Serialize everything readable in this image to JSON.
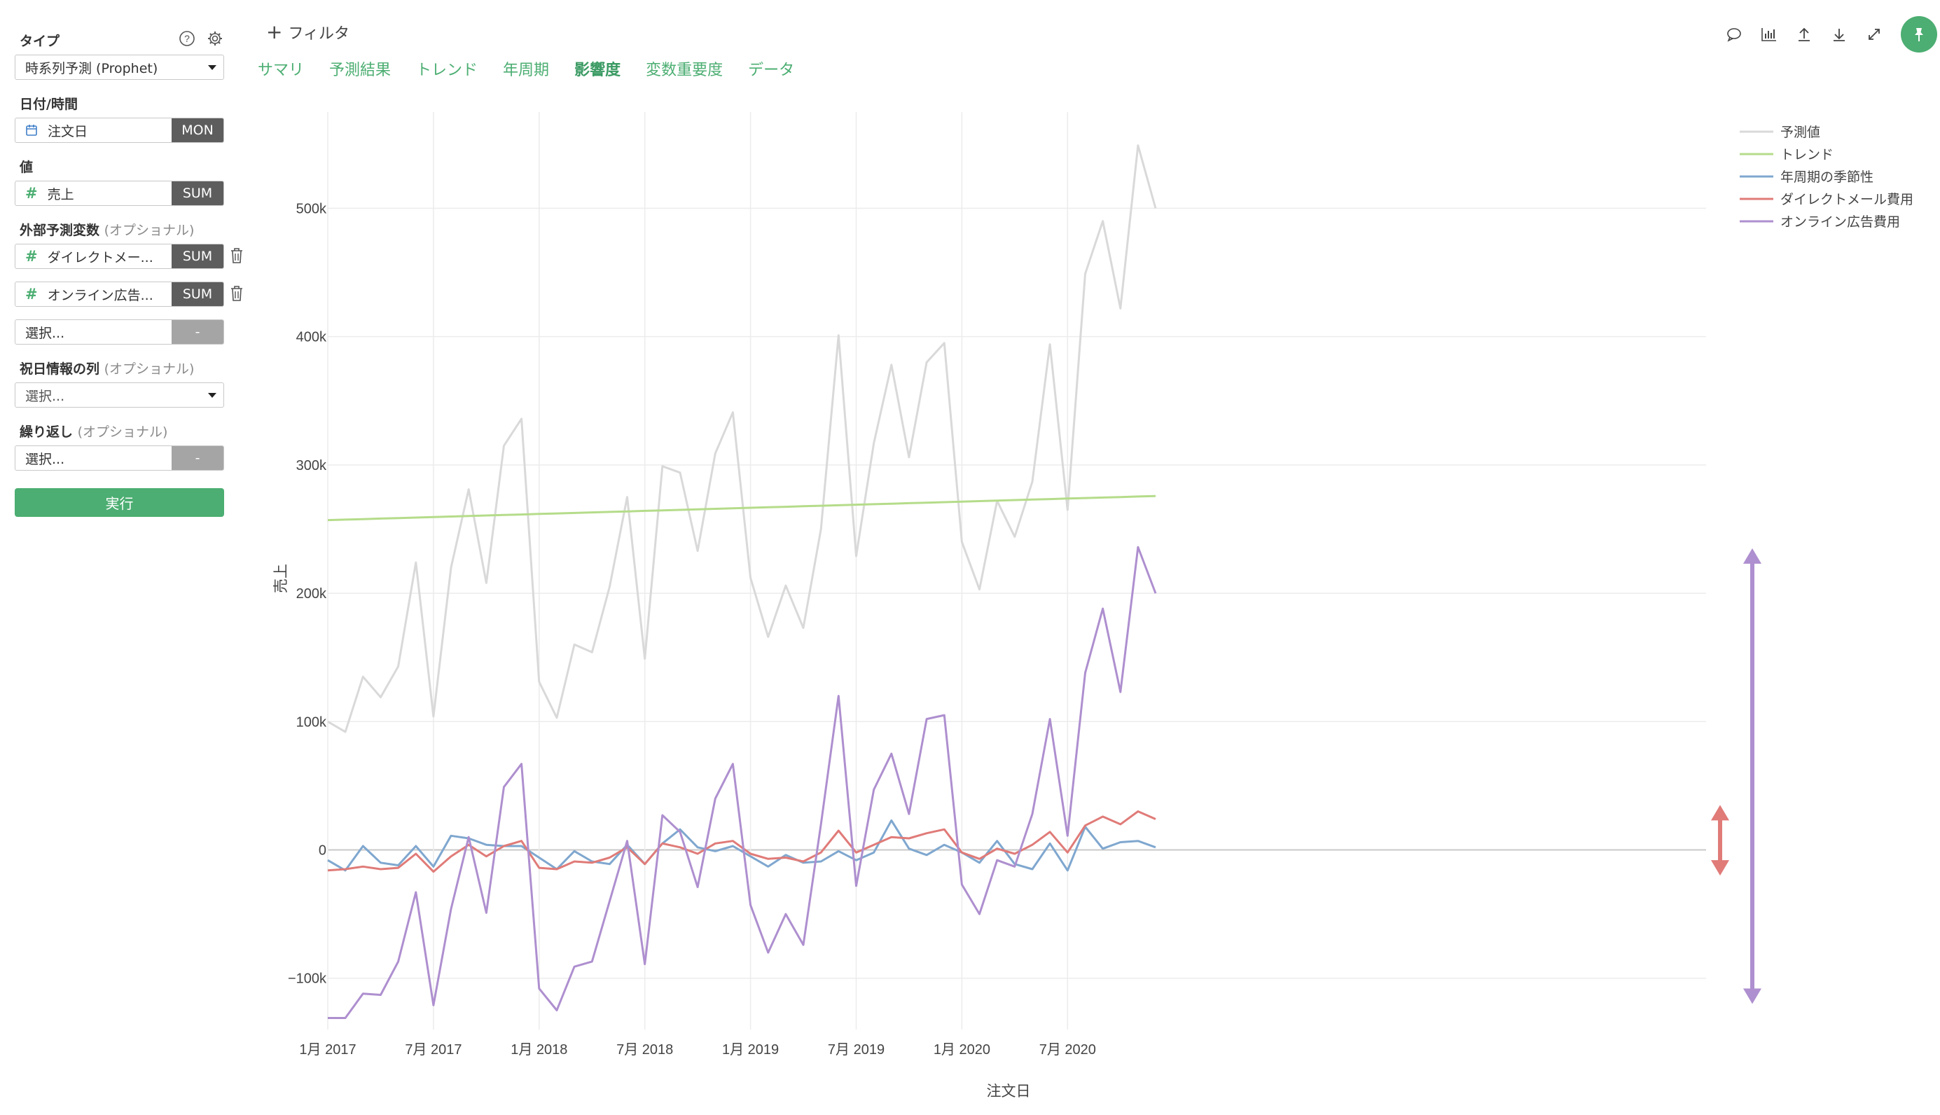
{
  "sidebar": {
    "type_label": "タイプ",
    "type_value": "時系列予測 (Prophet)",
    "date_label": "日付/時間",
    "date_field": "注文日",
    "date_agg": "MON",
    "value_label": "値",
    "value_field": "売上",
    "value_agg": "SUM",
    "ext_label": "外部予測変数",
    "ext_optional": "(オプショナル)",
    "ext_vars": [
      {
        "field": "ダイレクトメー...",
        "agg": "SUM"
      },
      {
        "field": "オンライン広告...",
        "agg": "SUM"
      }
    ],
    "ext_select_placeholder": "選択...",
    "ext_select_agg": "-",
    "holiday_label": "祝日情報の列",
    "holiday_optional": "(オプショナル)",
    "holiday_placeholder": "選択...",
    "repeat_label": "繰り返し",
    "repeat_optional": "(オプショナル)",
    "repeat_placeholder": "選択...",
    "repeat_agg": "-",
    "run_label": "実行"
  },
  "header": {
    "filter_label": "フィルタ",
    "tabs": [
      {
        "label": "サマリ",
        "active": false
      },
      {
        "label": "予測結果",
        "active": false
      },
      {
        "label": "トレンド",
        "active": false
      },
      {
        "label": "年周期",
        "active": false
      },
      {
        "label": "影響度",
        "active": true
      },
      {
        "label": "変数重要度",
        "active": false
      },
      {
        "label": "データ",
        "active": false
      }
    ],
    "toolbar_icons": [
      "comment-icon",
      "chart-icon",
      "upload-icon",
      "download-icon",
      "expand-icon",
      "pin-icon"
    ]
  },
  "colors": {
    "accent": "#4cae72",
    "forecast": "#d9d9d9",
    "trend": "#b5dc8a",
    "seasonality": "#7fa7cf",
    "direct_mail": "#e07b78",
    "online_ads": "#ae8fcf"
  },
  "chart_data": {
    "type": "line",
    "xlabel": "注文日",
    "ylabel": "売上",
    "ylim": [
      -140000,
      575000
    ],
    "yticks": [
      -100000,
      0,
      100000,
      200000,
      300000,
      400000,
      500000
    ],
    "ytick_labels": [
      "−100k",
      "0",
      "100k",
      "200k",
      "300k",
      "400k",
      "500k"
    ],
    "xticks": [
      0,
      6,
      12,
      18,
      24,
      30,
      36,
      42
    ],
    "xtick_labels": [
      "1月 2017",
      "7月 2017",
      "1月 2018",
      "7月 2018",
      "1月 2019",
      "7月 2019",
      "1月 2020",
      "7月 2020"
    ],
    "x_start": "2017-01",
    "grid": true,
    "legend_position": "top-right",
    "series": [
      {
        "name": "予測値",
        "color": "#d9d9d9",
        "values": [
          100000,
          92000,
          135000,
          119000,
          143000,
          224000,
          104000,
          220000,
          281000,
          208000,
          315000,
          336000,
          131000,
          103000,
          160000,
          154000,
          205000,
          275000,
          149000,
          299000,
          294000,
          233000,
          309000,
          341000,
          212000,
          166000,
          206000,
          173000,
          250000,
          401000,
          229000,
          317000,
          378000,
          306000,
          380000,
          395000,
          240000,
          203000,
          272000,
          244000,
          287000,
          394000,
          265000,
          449000,
          490000,
          422000,
          549000,
          500000
        ]
      },
      {
        "name": "トレンド",
        "color": "#b5dc8a",
        "values": [
          257000,
          257400,
          257800,
          258200,
          258600,
          259000,
          259400,
          259800,
          260200,
          260600,
          261000,
          261400,
          261800,
          262200,
          262600,
          263000,
          263400,
          263800,
          264200,
          264600,
          265000,
          265400,
          265800,
          266200,
          266600,
          267000,
          267400,
          267800,
          268200,
          268600,
          269000,
          269400,
          269800,
          270200,
          270600,
          271000,
          271400,
          271800,
          272200,
          272600,
          273000,
          273400,
          273800,
          274200,
          274600,
          275000,
          275400,
          275800
        ]
      },
      {
        "name": "年周期の季節性",
        "color": "#7fa7cf",
        "values": [
          -8000,
          -16000,
          3000,
          -10000,
          -12000,
          3000,
          -13000,
          11000,
          9000,
          4000,
          3000,
          3000,
          -6000,
          -15000,
          -1000,
          -9000,
          -11000,
          4000,
          -11000,
          5000,
          16000,
          2000,
          -1000,
          3000,
          -5000,
          -13000,
          -4000,
          -10000,
          -9000,
          -1000,
          -8000,
          -2000,
          23000,
          1000,
          -4000,
          4000,
          -2000,
          -10000,
          7000,
          -11000,
          -15000,
          5000,
          -16000,
          18000,
          1000,
          6000,
          7000,
          2000
        ]
      },
      {
        "name": "ダイレクトメール費用",
        "color": "#e07b78",
        "values": [
          -16000,
          -15000,
          -13000,
          -15000,
          -14000,
          -3000,
          -17000,
          -5000,
          4000,
          -5000,
          3000,
          7000,
          -14000,
          -15000,
          -9000,
          -10000,
          -6000,
          2000,
          -11000,
          5000,
          2000,
          -3000,
          5000,
          7000,
          -3000,
          -7000,
          -6000,
          -9000,
          -2000,
          15000,
          -2000,
          4000,
          10000,
          9000,
          13000,
          16000,
          -2000,
          -7000,
          1000,
          -3000,
          4000,
          14000,
          -2000,
          19000,
          26000,
          20000,
          30000,
          24000
        ]
      },
      {
        "name": "オンライン広告費用",
        "color": "#ae8fcf",
        "values": [
          -131000,
          -131000,
          -112000,
          -113000,
          -87000,
          -33000,
          -121000,
          -46000,
          10000,
          -49000,
          49000,
          67000,
          -108000,
          -125000,
          -91000,
          -87000,
          -40000,
          7000,
          -89000,
          27000,
          14000,
          -29000,
          40000,
          67000,
          -43000,
          -80000,
          -50000,
          -74000,
          20000,
          120000,
          -28000,
          47000,
          75000,
          28000,
          102000,
          105000,
          -27000,
          -50000,
          -8000,
          -13000,
          28000,
          102000,
          11000,
          138000,
          188000,
          123000,
          236000,
          200000
        ]
      }
    ],
    "annotations": [
      {
        "type": "double-arrow",
        "color": "#e07b78",
        "from": -20000,
        "to": 35000
      },
      {
        "type": "double-arrow",
        "color": "#ae8fcf",
        "from": -120000,
        "to": 235000
      }
    ]
  }
}
